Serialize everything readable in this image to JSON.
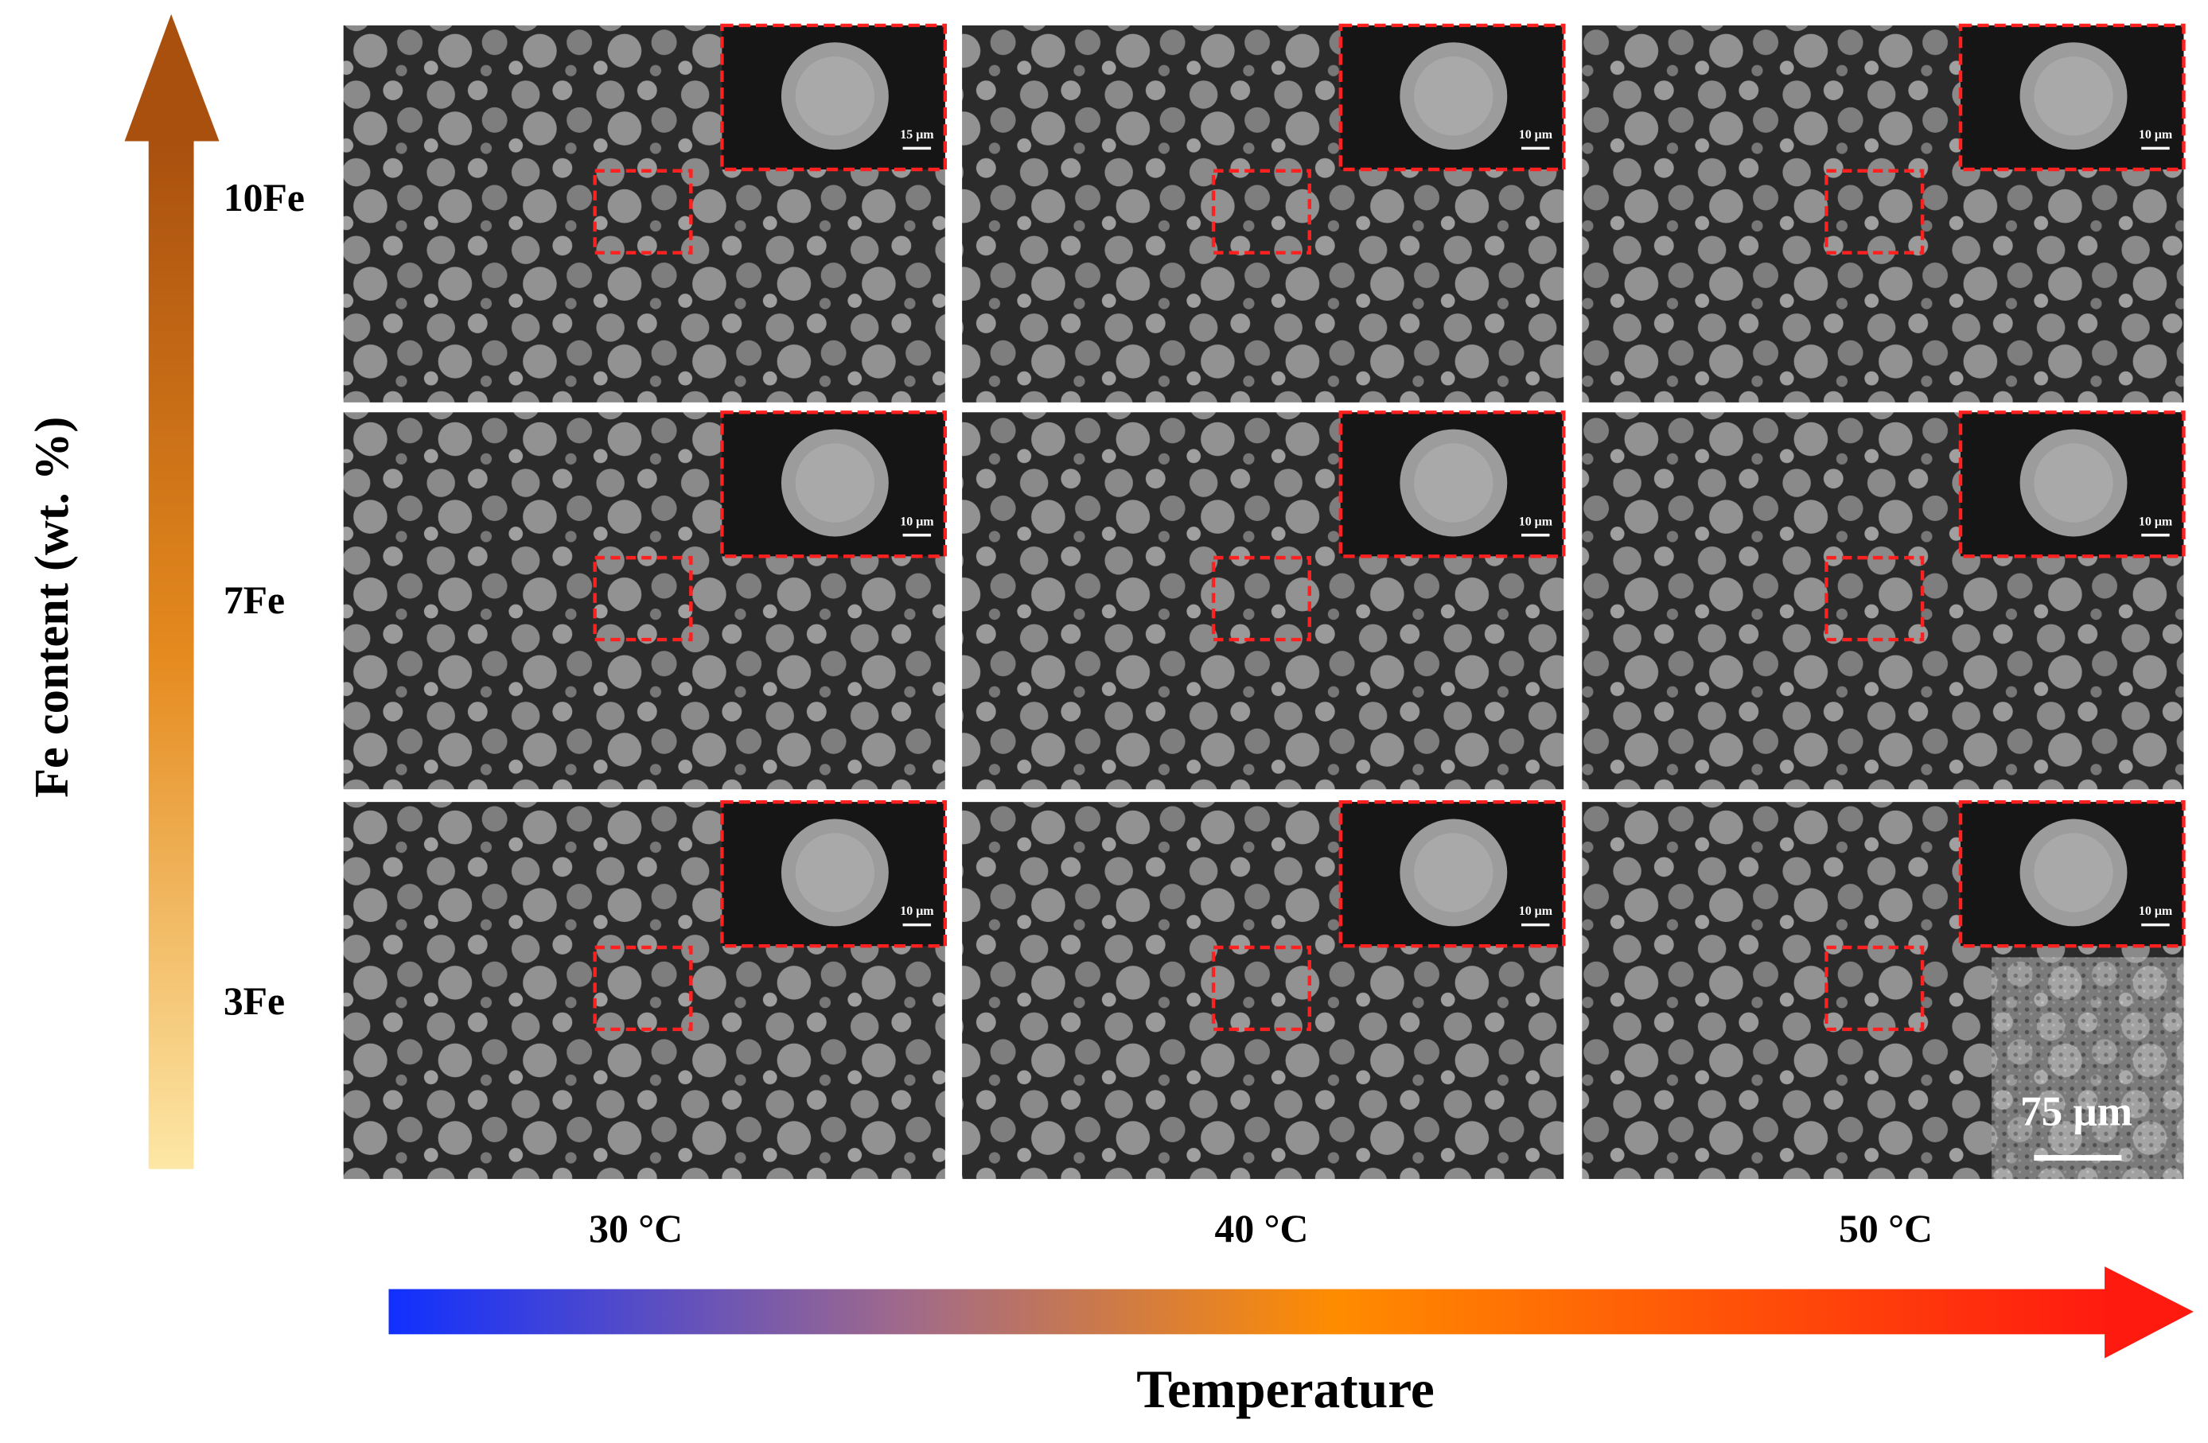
{
  "axes": {
    "y_label": "Fe content (wt. %)",
    "x_label": "Temperature"
  },
  "rows": [
    "10Fe",
    "7Fe",
    "3Fe"
  ],
  "columns": [
    "30 °C",
    "40 °C",
    "50 °C"
  ],
  "panels": [
    [
      {
        "inset_scale": "15 μm"
      },
      {
        "inset_scale": "10 μm"
      },
      {
        "inset_scale": "10 μm"
      }
    ],
    [
      {
        "inset_scale": "10 μm"
      },
      {
        "inset_scale": "10 μm"
      },
      {
        "inset_scale": "10 μm"
      }
    ],
    [
      {
        "inset_scale": "10 μm"
      },
      {
        "inset_scale": "10 μm"
      },
      {
        "inset_scale": "10 μm"
      }
    ]
  ],
  "scale_bar": "75 μm"
}
